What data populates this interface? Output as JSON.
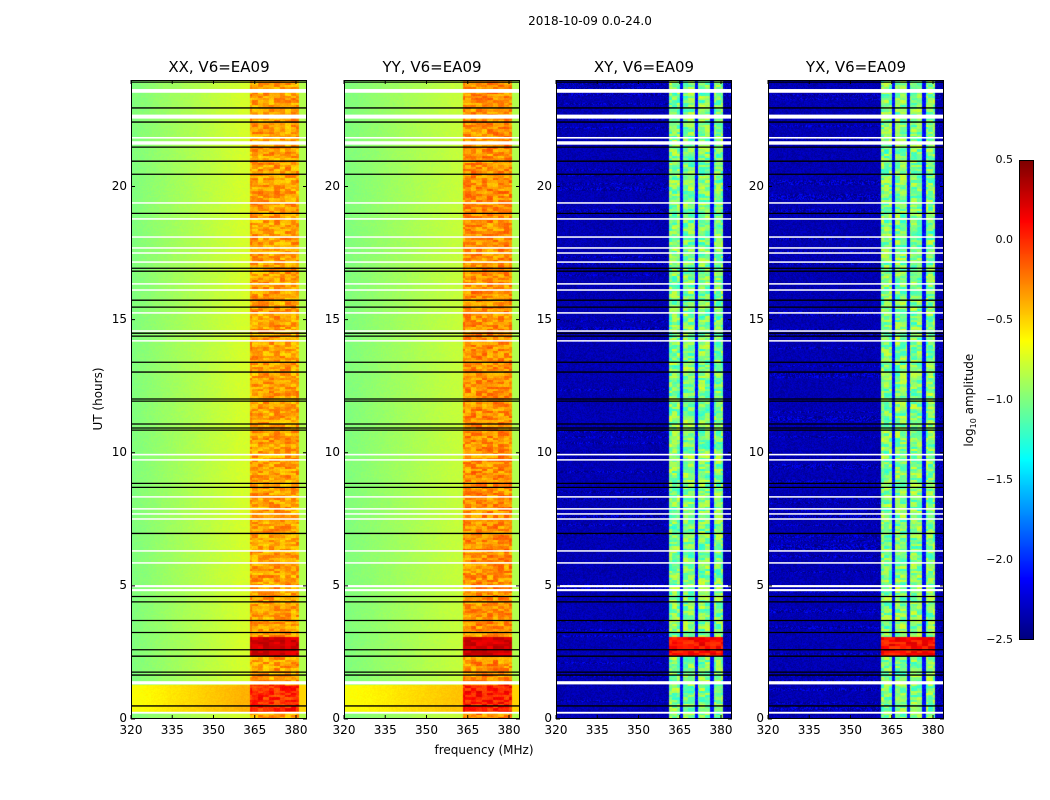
{
  "chart_data": {
    "type": "heatmap",
    "title": "2018-10-09 0.0-24.0",
    "xlabel": "frequency (MHz)",
    "ylabel": "UT (hours)",
    "xlim": [
      320,
      384
    ],
    "ylim": [
      0,
      24
    ],
    "xticks": [
      320,
      335,
      350,
      365,
      380
    ],
    "yticks": [
      0,
      5,
      10,
      15,
      20
    ],
    "colormap": "jet",
    "colorbar": {
      "label_main": "log",
      "label_sub": "10",
      "label_rest": " amplitude",
      "range": [
        -2.5,
        0.5
      ],
      "ticks": [
        "0.5",
        "0.0",
        "−0.5",
        "−1.0",
        "−1.5",
        "−2.0",
        "−2.5"
      ],
      "tick_values": [
        0.5,
        0.0,
        -0.5,
        -1.0,
        -1.5,
        -2.0,
        -2.5
      ]
    },
    "flagged_times_hours": [
      [
        23.52,
        23.66
      ],
      [
        22.55,
        22.7
      ],
      [
        21.8,
        21.86
      ],
      [
        21.57,
        21.7
      ],
      [
        19.36,
        19.41
      ],
      [
        18.76,
        18.81
      ],
      [
        18.08,
        18.13
      ],
      [
        17.67,
        17.72
      ],
      [
        17.48,
        17.53
      ],
      [
        17.14,
        17.19
      ],
      [
        16.32,
        16.37
      ],
      [
        16.09,
        16.14
      ],
      [
        15.23,
        15.28
      ],
      [
        14.55,
        14.6
      ],
      [
        14.18,
        14.23
      ],
      [
        9.9,
        9.96
      ],
      [
        9.71,
        9.76
      ],
      [
        8.32,
        8.37
      ],
      [
        7.87,
        7.92
      ],
      [
        7.68,
        7.73
      ],
      [
        7.49,
        7.54
      ],
      [
        6.29,
        6.34
      ],
      [
        5.84,
        5.89
      ],
      [
        4.95,
        5.03
      ],
      [
        4.8,
        4.88
      ],
      [
        1.3,
        1.42
      ],
      [
        0.2,
        0.27
      ]
    ],
    "black_line_times_hours": [
      23.92,
      22.95,
      22.42,
      21.48,
      20.95,
      20.46,
      18.99,
      16.93,
      16.82,
      15.73,
      15.47,
      14.49,
      14.38,
      13.4,
      13.03,
      12.02,
      11.94,
      11.08,
      10.93,
      10.85,
      8.85,
      8.7,
      6.97,
      4.6,
      4.4,
      3.7,
      3.25,
      2.6,
      2.36,
      1.76,
      1.65,
      0.49
    ],
    "panels": [
      {
        "title": "XX, V6=EA09",
        "kind": "parallel",
        "background_log_amp": [
          -1.0,
          -0.75
        ],
        "band_mhz": [
          363,
          381
        ],
        "band_log_amp": -0.35,
        "band_gaps_mhz": [],
        "bright_times_hours": [
          [
            0.3,
            1.3
          ]
        ],
        "flare_times_hours": [
          [
            2.4,
            3.1
          ]
        ]
      },
      {
        "title": "YY, V6=EA09",
        "kind": "parallel",
        "background_log_amp": [
          -1.0,
          -0.8
        ],
        "band_mhz": [
          363,
          381
        ],
        "band_log_amp": -0.3,
        "band_gaps_mhz": [],
        "bright_times_hours": [
          [
            0.3,
            1.3
          ]
        ],
        "flare_times_hours": [
          [
            2.4,
            3.1
          ]
        ]
      },
      {
        "title": "XY, V6=EA09",
        "kind": "cross",
        "background_log_amp": [
          -2.35,
          -2.35
        ],
        "band_mhz": [
          361,
          380.5
        ],
        "band_log_amp": -1.0,
        "band_gaps_mhz": [
          365.5,
          371,
          376.5
        ],
        "bright_times_hours": [],
        "flare_times_hours": [
          [
            2.4,
            3.1
          ]
        ]
      },
      {
        "title": "YX, V6=EA09",
        "kind": "cross",
        "background_log_amp": [
          -2.35,
          -2.35
        ],
        "band_mhz": [
          361,
          380.5
        ],
        "band_log_amp": -1.0,
        "band_gaps_mhz": [
          365.5,
          371,
          376.5
        ],
        "bright_times_hours": [],
        "flare_times_hours": [
          [
            2.4,
            3.1
          ]
        ]
      }
    ]
  }
}
